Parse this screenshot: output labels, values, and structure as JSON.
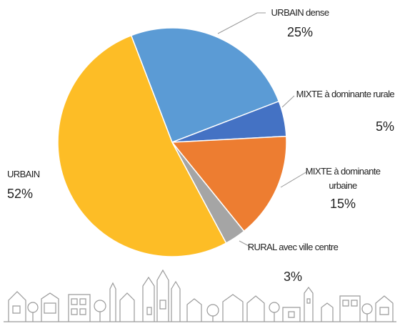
{
  "chart_data": {
    "type": "pie",
    "categories": [
      "URBAIN dense",
      "MIXTE à dominante rurale",
      "MIXTE à dominante urbaine",
      "RURAL avec ville centre",
      "URBAIN"
    ],
    "values": [
      25,
      5,
      15,
      3,
      52
    ],
    "value_labels": [
      "25%",
      "5%",
      "15%",
      "3%",
      "52%"
    ],
    "colors": [
      "#5b9bd5",
      "#4472c4",
      "#ed7d31",
      "#a5a5a5",
      "#fdbd26"
    ]
  }
}
